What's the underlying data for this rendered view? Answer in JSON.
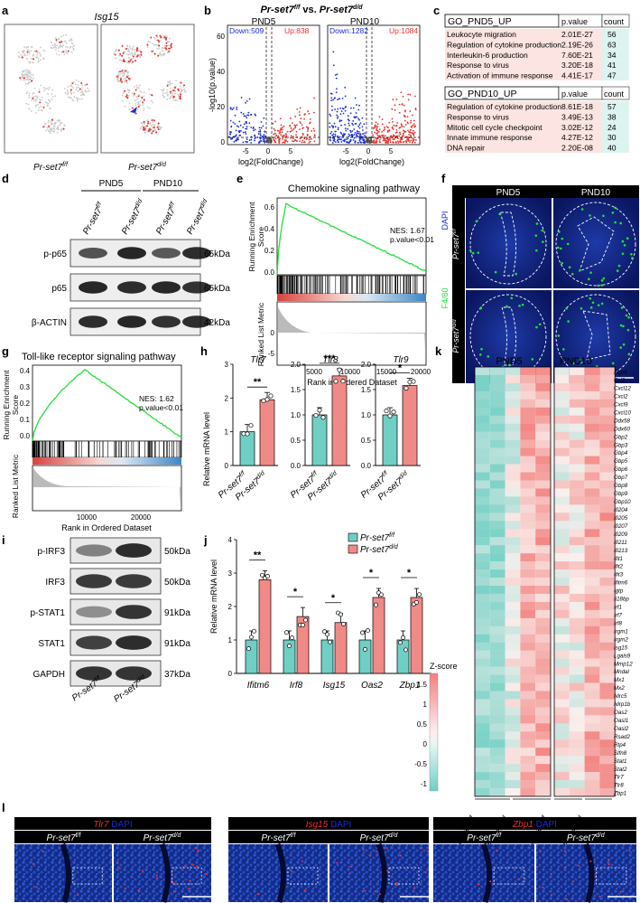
{
  "panels": {
    "a": {
      "letter": "a",
      "title": "Isg15",
      "labels": [
        "Pr-set7",
        "Pr-set7"
      ],
      "sup": [
        "f/f",
        "d/d"
      ]
    },
    "b": {
      "letter": "b",
      "title": "Pr-set7",
      "title_sup": "f/f",
      "title_vs": " vs. ",
      "title2": "Pr-set7",
      "title2_sup": "d/d",
      "xlabel": "log2(FoldChange)",
      "ylabel": "-log10(p.value)",
      "plots": [
        {
          "name": "PND5",
          "down": "Down:509",
          "up": "Up:838"
        },
        {
          "name": "PND10",
          "down": "Down:1282",
          "up": "Up:1084"
        }
      ],
      "yticks": [
        "0",
        "20",
        "40",
        "60"
      ],
      "xticks": [
        "-5",
        "0",
        "5"
      ]
    },
    "c": {
      "letter": "c",
      "tables": [
        {
          "header": "GO_PND5_UP",
          "col2": "p.value",
          "col3": "count",
          "rows": [
            [
              "Leukocyte migration",
              "2.01E-27",
              "56"
            ],
            [
              "Regulation of cytokine production",
              "2.19E-26",
              "63"
            ],
            [
              "Interleukin-6 production",
              "7.60E-21",
              "34"
            ],
            [
              "Response to virus",
              "3.20E-18",
              "41"
            ],
            [
              "Activation of immune response",
              "4.41E-17",
              "47"
            ]
          ]
        },
        {
          "header": "GO_PND10_UP",
          "col2": "p.value",
          "col3": "count",
          "rows": [
            [
              "Regulation of cytokine production",
              "8.61E-18",
              "57"
            ],
            [
              "Response to virus",
              "3.49E-13",
              "38"
            ],
            [
              "Mitotic cell cycle checkpoint",
              "3.02E-12",
              "24"
            ],
            [
              "Innate immune response",
              "4.27E-12",
              "30"
            ],
            [
              "DNA repair",
              "2.20E-08",
              "40"
            ]
          ]
        }
      ]
    },
    "d": {
      "letter": "d",
      "groups": [
        "PND5",
        "PND10"
      ],
      "rows": [
        {
          "name": "p-p65",
          "kda": "65kDa"
        },
        {
          "name": "p65",
          "kda": "65kDa"
        },
        {
          "name": "β-ACTIN",
          "kda": "42kDa"
        }
      ]
    },
    "e": {
      "letter": "e",
      "title": "Chemokine signaling pathway",
      "nes": "NES: 1.67",
      "pval": "p.value<0.01",
      "ylabel1": "Running Enrichment",
      "ylabel1b": "Score",
      "ylabel2": "Ranked List Metric",
      "xlabel": "Rank in Ordered Dataset",
      "yticks": [
        "0.6",
        "0.4",
        "0.2",
        "0.0"
      ],
      "yticks2": [
        "5",
        "0",
        "-5"
      ],
      "xticks": [
        "5000",
        "10000",
        "15000",
        "20000"
      ]
    },
    "f": {
      "letter": "f",
      "cols": [
        "PND5",
        "PND10"
      ],
      "side": [
        "DAPI",
        "F4/80"
      ]
    },
    "g": {
      "letter": "g",
      "title": "Toll-like receptor signaling pathway",
      "nes": "NES: 1.62",
      "pval": "p.value<0.01",
      "ylabel1": "Running Enrichment",
      "ylabel1b": "Score",
      "ylabel2": "Ranked List Metric",
      "xlabel": "Rank in Ordered Dataset",
      "yticks": [
        "0.4",
        "0.3",
        "0.2",
        "0.1",
        "0.0"
      ],
      "xticks": [
        "10000",
        "20000"
      ]
    },
    "h": {
      "letter": "h",
      "ylabel": "Relative mRNA level",
      "genes": [
        {
          "name": "Tlr7",
          "sig": "**",
          "ticks": [
            "0",
            "1",
            "2",
            "3"
          ],
          "vals": [
            1.0,
            1.95
          ]
        },
        {
          "name": "Tlr8",
          "sig": "***",
          "ticks": [
            "0.0",
            "0.5",
            "1.0",
            "1.5",
            "2.0"
          ],
          "vals": [
            1.0,
            1.77
          ]
        },
        {
          "name": "Tlr9",
          "sig": "*",
          "ticks": [
            "0.0",
            "0.5",
            "1.0",
            "1.5",
            "2.0"
          ],
          "vals": [
            1.0,
            1.58
          ]
        }
      ]
    },
    "i": {
      "letter": "i",
      "rows": [
        {
          "name": "p-IRF3",
          "kda": "50kDa"
        },
        {
          "name": "IRF3",
          "kda": "50kDa"
        },
        {
          "name": "p-STAT1",
          "kda": "91kDa"
        },
        {
          "name": "STAT1",
          "kda": "91kDa"
        },
        {
          "name": "GAPDH",
          "kda": "37kDa"
        }
      ]
    },
    "j": {
      "letter": "j",
      "ylabel": "Relative mRNA level",
      "yticks": [
        "0",
        "1",
        "2",
        "3",
        "4"
      ],
      "legend": [
        "Pr-set7",
        "Pr-set7"
      ],
      "legend_sup": [
        "f/f",
        "d/d"
      ],
      "genes": [
        "Ifitm6",
        "Irf8",
        "Isg15",
        "Oas2",
        "Zbp1"
      ],
      "sig": [
        "**",
        "*",
        "*",
        "*",
        "*"
      ]
    },
    "k": {
      "letter": "k",
      "cols": [
        "PND5",
        "PND10"
      ],
      "zlabel": "Z-score",
      "zticks": [
        "1.5",
        "1",
        "0.5",
        "0",
        "-0.5",
        "-1"
      ],
      "genes": [
        "Aqp4",
        "Ccl2",
        "Cxcl12",
        "Cxcl2",
        "Cxcl9",
        "Cxcl10",
        "Ddx58",
        "Ddx60",
        "Gbp2",
        "Gbp3",
        "Gbp4",
        "Gbp5",
        "Gbp6",
        "Gbp7",
        "Gbp8",
        "Gbp9",
        "Gbp10",
        "Ifi204",
        "Ifi205",
        "Ifi207",
        "Ifi209",
        "Ifi211",
        "Ifi213",
        "Ifit1",
        "Ifit2",
        "Ifit3",
        "Ifitm6",
        "Igtp",
        "Il18bp",
        "Irf1",
        "Irf7",
        "Irf8",
        "Irgm1",
        "Irgm2",
        "Isg15",
        "Lgals9",
        "Mmp12",
        "Mndal",
        "Mx1",
        "Mx2",
        "Nlrc5",
        "Nlrp1b",
        "Oas2",
        "Oasl1",
        "Oasl2",
        "Rsad2",
        "Rtp4",
        "Slfn8",
        "Stat1",
        "Stat2",
        "Tlr7",
        "Tlr8",
        "Zbp1"
      ]
    },
    "l": {
      "letter": "l",
      "groups": [
        {
          "marker": "Tlr7",
          "dapi": "DAPI"
        },
        {
          "marker": "Isg15",
          "dapi": "DAPI"
        },
        {
          "marker": "Zbp1",
          "dapi": "DAPI"
        }
      ]
    }
  },
  "chart_data": [
    {
      "type": "bar",
      "panel": "h",
      "title": "Tlr7",
      "ylabel": "Relative mRNA level",
      "categories": [
        "Pr-set7 f/f",
        "Pr-set7 d/d"
      ],
      "values": [
        1.0,
        1.95
      ],
      "ylim": [
        0,
        3
      ]
    },
    {
      "type": "bar",
      "panel": "h",
      "title": "Tlr8",
      "ylabel": "Relative mRNA level",
      "categories": [
        "Pr-set7 f/f",
        "Pr-set7 d/d"
      ],
      "values": [
        1.0,
        1.77
      ],
      "ylim": [
        0,
        2
      ]
    },
    {
      "type": "bar",
      "panel": "h",
      "title": "Tlr9",
      "ylabel": "Relative mRNA level",
      "categories": [
        "Pr-set7 f/f",
        "Pr-set7 d/d"
      ],
      "values": [
        1.0,
        1.58
      ],
      "ylim": [
        0,
        2
      ]
    },
    {
      "type": "bar",
      "panel": "j",
      "ylabel": "Relative mRNA level",
      "categories": [
        "Ifitm6",
        "Irf8",
        "Isg15",
        "Oas2",
        "Zbp1"
      ],
      "ylim": [
        0,
        4
      ],
      "series": [
        {
          "name": "Pr-set7 f/f",
          "values": [
            1.0,
            1.0,
            1.0,
            1.0,
            1.0
          ]
        },
        {
          "name": "Pr-set7 d/d",
          "values": [
            2.8,
            1.7,
            1.52,
            2.27,
            2.27
          ]
        }
      ]
    }
  ],
  "colors": {
    "teal": "#6fcfc4",
    "salmon": "#f08a86",
    "red": "#e8322a",
    "blue": "#1a2bd6",
    "green": "#22e03a",
    "pink_bg": "#fbe4e1",
    "cyan_bg": "#ddf3ef"
  }
}
